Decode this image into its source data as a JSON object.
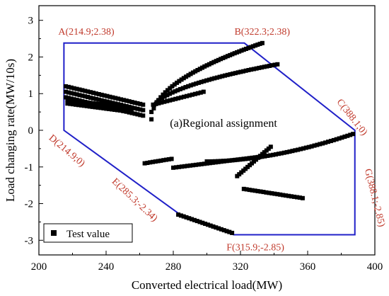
{
  "chart_data": {
    "type": "scatter",
    "xlabel": "Converted electrical load(MW)",
    "ylabel": "Load changing rate(MW/10s)",
    "xlim": [
      200,
      400
    ],
    "ylim": [
      -3.4,
      3.4
    ],
    "x_ticks": [
      200,
      240,
      280,
      320,
      360,
      400
    ],
    "y_ticks": [
      -3,
      -2,
      -1,
      0,
      1,
      2,
      3
    ],
    "grid": false,
    "legend": {
      "placement": "bottom-left",
      "entries": [
        "Test value"
      ]
    },
    "annotation": "(a)Regional assignment",
    "region_boundary": {
      "color": "#2020c8",
      "vertices": [
        {
          "name": "A",
          "label": "A(214.9;2.38)",
          "x": 214.9,
          "y": 2.38
        },
        {
          "name": "B",
          "label": "B(322.3;2.38)",
          "x": 322.3,
          "y": 2.38
        },
        {
          "name": "C",
          "label": "C(388.1;0)",
          "x": 388.1,
          "y": 0
        },
        {
          "name": "G",
          "label": "G(388.1;-2.85)",
          "x": 388.1,
          "y": -2.85
        },
        {
          "name": "F",
          "label": "F(315.9;-2.85)",
          "x": 315.9,
          "y": -2.85
        },
        {
          "name": "E",
          "label": "E(285.3;-2.34)",
          "x": 285.3,
          "y": -2.34
        },
        {
          "name": "D",
          "label": "D(214.9;0)",
          "x": 214.9,
          "y": 0
        }
      ],
      "polygon_order": [
        "A",
        "B",
        "C",
        "G",
        "F",
        "E",
        "D"
      ]
    },
    "series": [
      {
        "name": "Test value",
        "marker": "square",
        "color": "#000000",
        "segments": [
          {
            "from": [
              216,
              1.05
            ],
            "to": [
              262,
              0.55
            ],
            "band": [
              -0.15,
              0,
              0.15
            ]
          },
          {
            "from": [
              217,
              0.78
            ],
            "to": [
              255,
              0.55
            ],
            "band": [
              -0.05,
              0.05
            ]
          },
          {
            "from": [
              268,
              0.7
            ],
            "to": [
              298,
              1.05
            ]
          },
          {
            "from": [
              263,
              -0.9
            ],
            "to": [
              279,
              -0.78
            ]
          },
          {
            "from": [
              280,
              -1.02
            ],
            "to": [
              332,
              -0.72
            ]
          },
          {
            "from": [
              318,
              -1.25
            ],
            "to": [
              338,
              -0.45
            ]
          },
          {
            "from": [
              322,
              -1.6
            ],
            "to": [
              357,
              -1.85
            ]
          },
          {
            "from": [
              283,
              -2.3
            ],
            "to": [
              315,
              -2.8
            ]
          },
          {
            "from": [
              267,
              0.3
            ],
            "to": [
              333,
              2.38
            ],
            "curve": "sqrt"
          },
          {
            "from": [
              267,
              0.5
            ],
            "to": [
              342,
              1.8
            ],
            "curve": "sqrt"
          },
          {
            "from": [
              300,
              -0.85
            ],
            "to": [
              387,
              -0.1
            ],
            "curve": "pow"
          }
        ]
      }
    ]
  }
}
